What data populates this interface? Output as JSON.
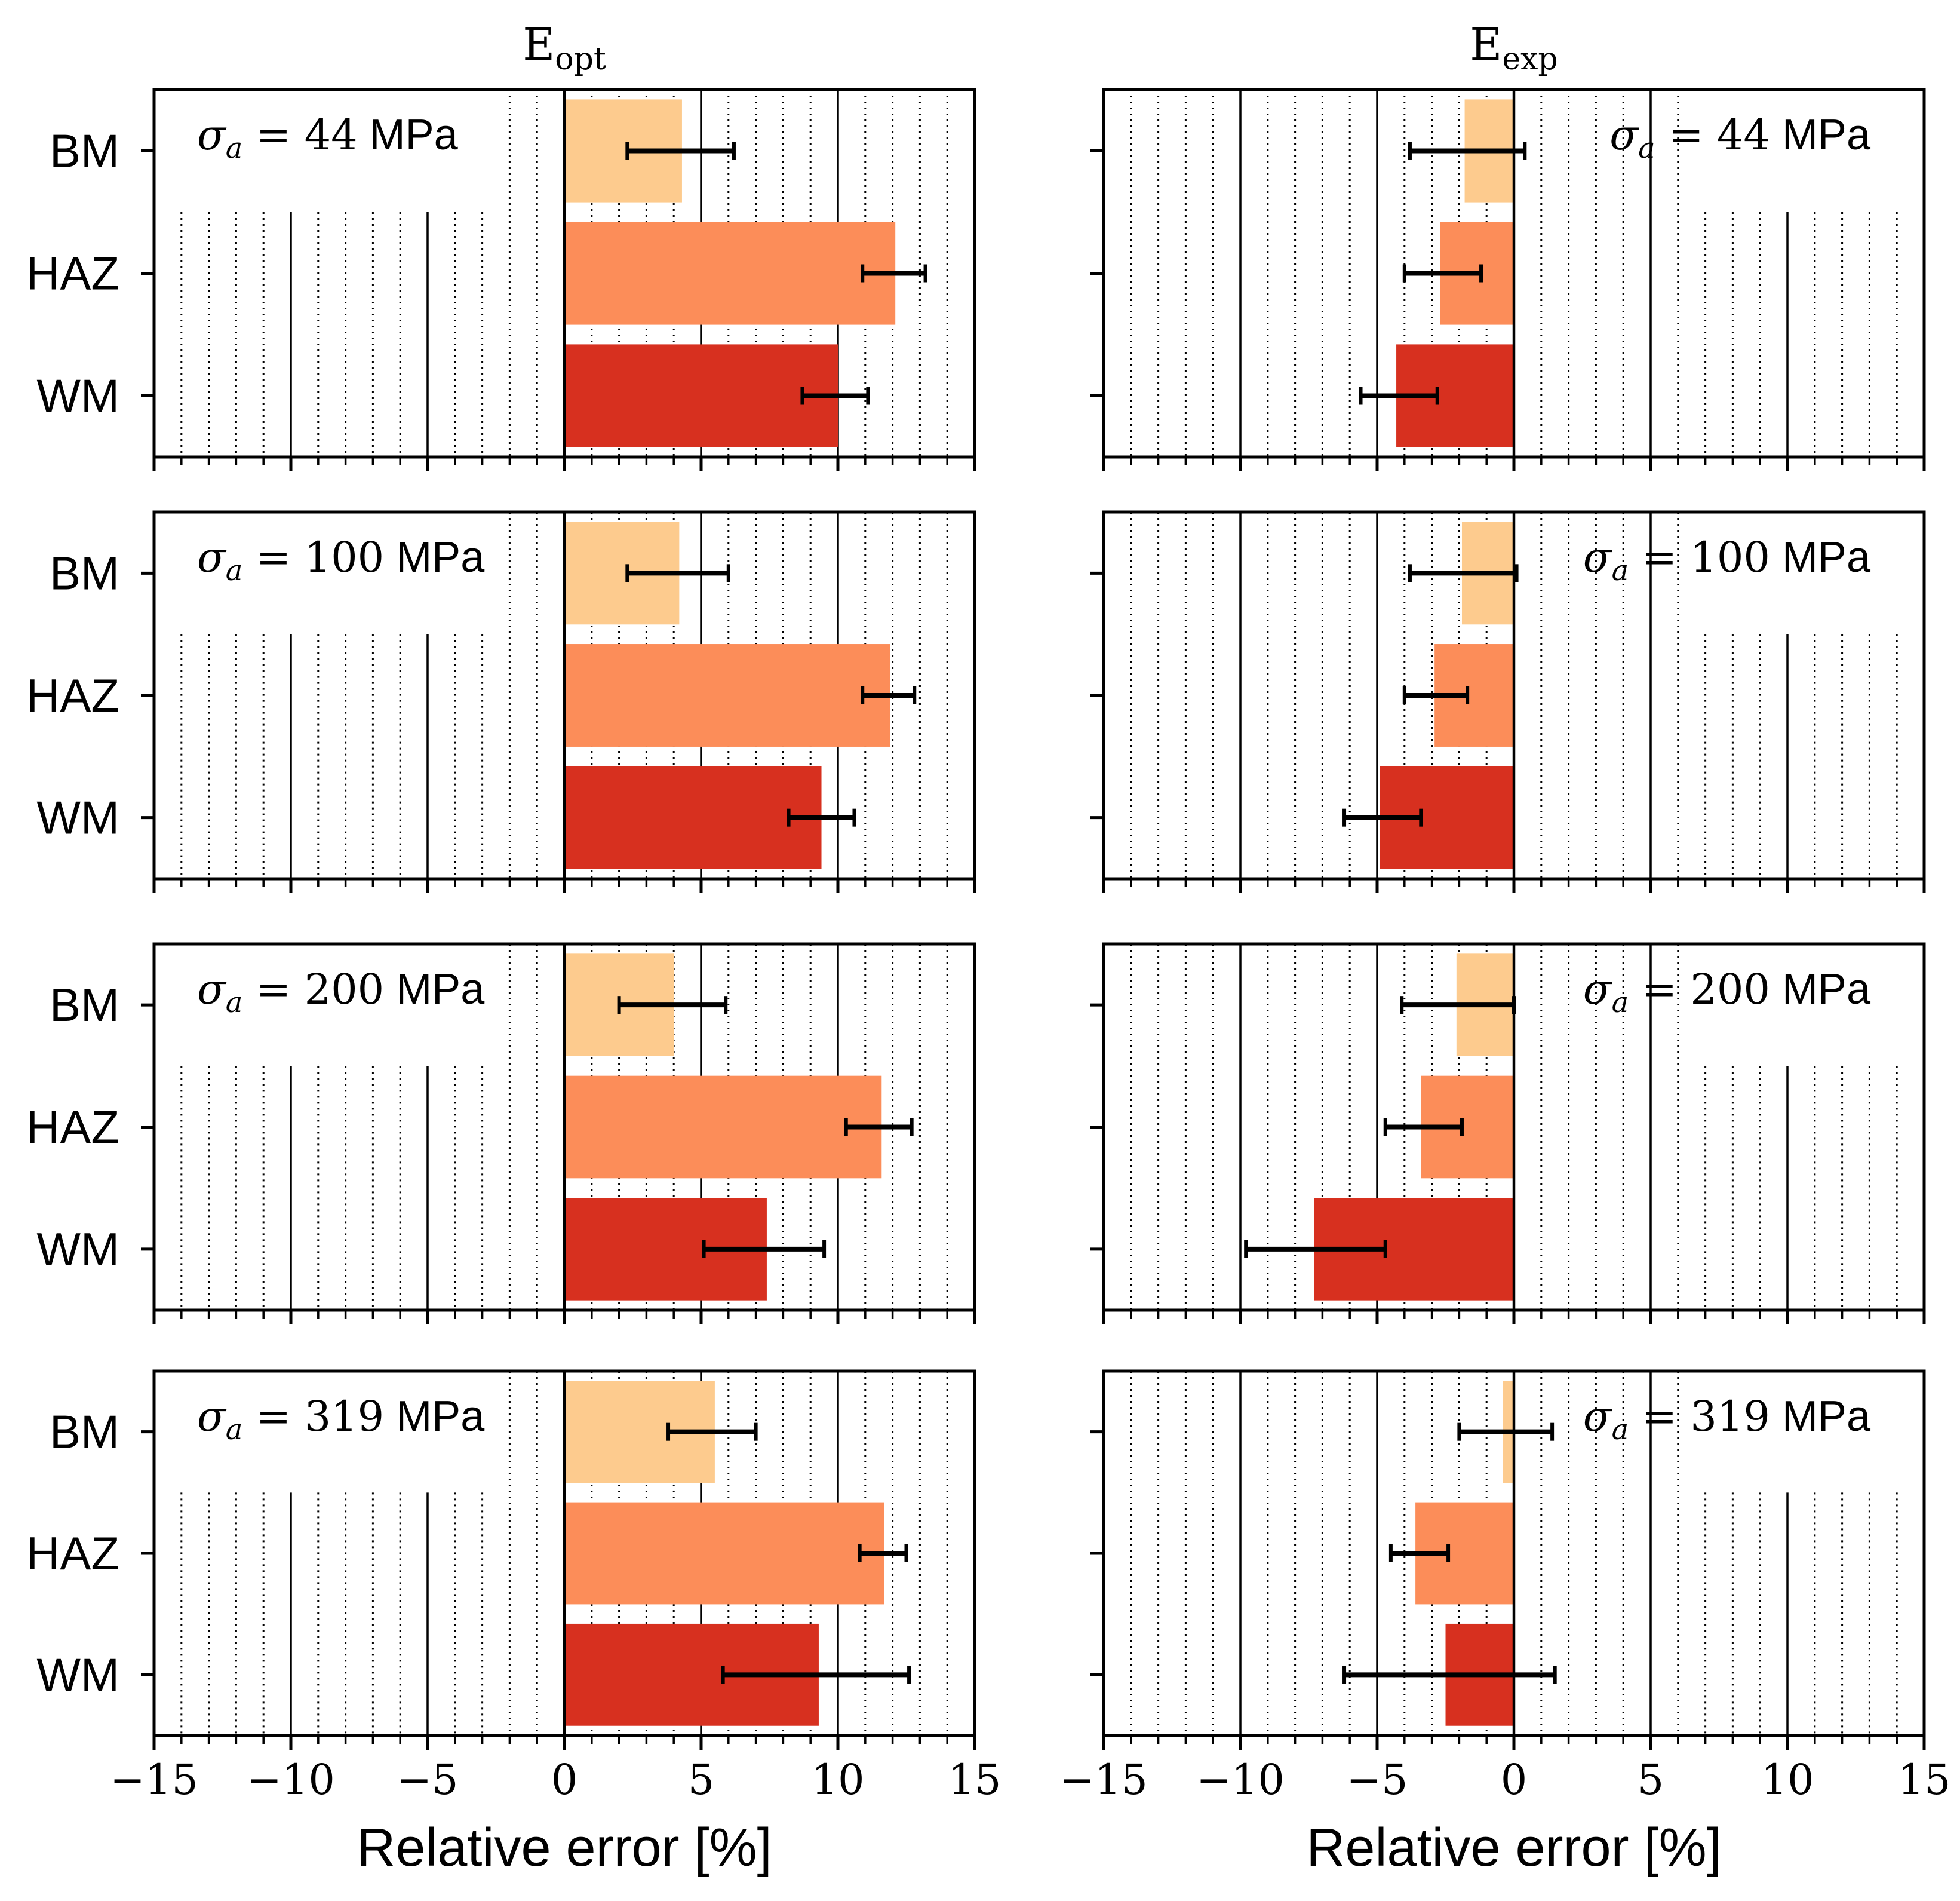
{
  "chart_data": {
    "type": "bar",
    "orientation": "horizontal",
    "categories": [
      "BM",
      "HAZ",
      "WM"
    ],
    "xlabel": "Relative error [%]",
    "xlim": [
      -15,
      15
    ],
    "xticks": [
      -15,
      -10,
      -5,
      0,
      5,
      10,
      15
    ],
    "xtick_labels": [
      "−15",
      "−10",
      "−5",
      "0",
      "5",
      "10",
      "15"
    ],
    "grid": "vertical (solid major, dotted minor)",
    "colors": {
      "BM": "#fdcb8e",
      "HAZ": "#fc8d59",
      "WM": "#d7301f"
    },
    "columns": [
      {
        "title_base": "E",
        "title_sub": "opt",
        "annotation_position": "top-left"
      },
      {
        "title_base": "E",
        "title_sub": "exp",
        "annotation_position": "top-right"
      }
    ],
    "rows": [
      {
        "annotation": {
          "symbol": "σ",
          "sub": "a",
          "eq": " = ",
          "value": "44",
          "unit": " MPa"
        },
        "panels": [
          {
            "column": "E_opt",
            "bars": [
              {
                "category": "BM",
                "value": 4.3,
                "err_low": 2.3,
                "err_high": 6.2
              },
              {
                "category": "HAZ",
                "value": 12.1,
                "err_low": 10.9,
                "err_high": 13.2
              },
              {
                "category": "WM",
                "value": 10.0,
                "err_low": 8.7,
                "err_high": 11.1
              }
            ]
          },
          {
            "column": "E_exp",
            "bars": [
              {
                "category": "BM",
                "value": -1.8,
                "err_low": -3.8,
                "err_high": 0.4
              },
              {
                "category": "HAZ",
                "value": -2.7,
                "err_low": -4.0,
                "err_high": -1.2
              },
              {
                "category": "WM",
                "value": -4.3,
                "err_low": -5.6,
                "err_high": -2.8
              }
            ]
          }
        ]
      },
      {
        "annotation": {
          "symbol": "σ",
          "sub": "a",
          "eq": " = ",
          "value": "100",
          "unit": " MPa"
        },
        "panels": [
          {
            "column": "E_opt",
            "bars": [
              {
                "category": "BM",
                "value": 4.2,
                "err_low": 2.3,
                "err_high": 6.0
              },
              {
                "category": "HAZ",
                "value": 11.9,
                "err_low": 10.9,
                "err_high": 12.8
              },
              {
                "category": "WM",
                "value": 9.4,
                "err_low": 8.2,
                "err_high": 10.6
              }
            ]
          },
          {
            "column": "E_exp",
            "bars": [
              {
                "category": "BM",
                "value": -1.9,
                "err_low": -3.8,
                "err_high": 0.1
              },
              {
                "category": "HAZ",
                "value": -2.9,
                "err_low": -4.0,
                "err_high": -1.7
              },
              {
                "category": "WM",
                "value": -4.9,
                "err_low": -6.2,
                "err_high": -3.4
              }
            ]
          }
        ]
      },
      {
        "annotation": {
          "symbol": "σ",
          "sub": "a",
          "eq": " = ",
          "value": "200",
          "unit": " MPa"
        },
        "panels": [
          {
            "column": "E_opt",
            "bars": [
              {
                "category": "BM",
                "value": 4.0,
                "err_low": 2.0,
                "err_high": 5.9
              },
              {
                "category": "HAZ",
                "value": 11.6,
                "err_low": 10.3,
                "err_high": 12.7
              },
              {
                "category": "WM",
                "value": 7.4,
                "err_low": 5.1,
                "err_high": 9.5
              }
            ]
          },
          {
            "column": "E_exp",
            "bars": [
              {
                "category": "BM",
                "value": -2.1,
                "err_low": -4.1,
                "err_high": 0.0
              },
              {
                "category": "HAZ",
                "value": -3.4,
                "err_low": -4.7,
                "err_high": -1.9
              },
              {
                "category": "WM",
                "value": -7.3,
                "err_low": -9.8,
                "err_high": -4.7
              }
            ]
          }
        ]
      },
      {
        "annotation": {
          "symbol": "σ",
          "sub": "a",
          "eq": " = ",
          "value": "319",
          "unit": " MPa"
        },
        "panels": [
          {
            "column": "E_opt",
            "bars": [
              {
                "category": "BM",
                "value": 5.5,
                "err_low": 3.8,
                "err_high": 7.0
              },
              {
                "category": "HAZ",
                "value": 11.7,
                "err_low": 10.8,
                "err_high": 12.5
              },
              {
                "category": "WM",
                "value": 9.3,
                "err_low": 5.8,
                "err_high": 12.6
              }
            ]
          },
          {
            "column": "E_exp",
            "bars": [
              {
                "category": "BM",
                "value": -0.4,
                "err_low": -2.0,
                "err_high": 1.4
              },
              {
                "category": "HAZ",
                "value": -3.6,
                "err_low": -4.5,
                "err_high": -2.4
              },
              {
                "category": "WM",
                "value": -2.5,
                "err_low": -6.2,
                "err_high": 1.5
              }
            ]
          }
        ]
      }
    ]
  }
}
